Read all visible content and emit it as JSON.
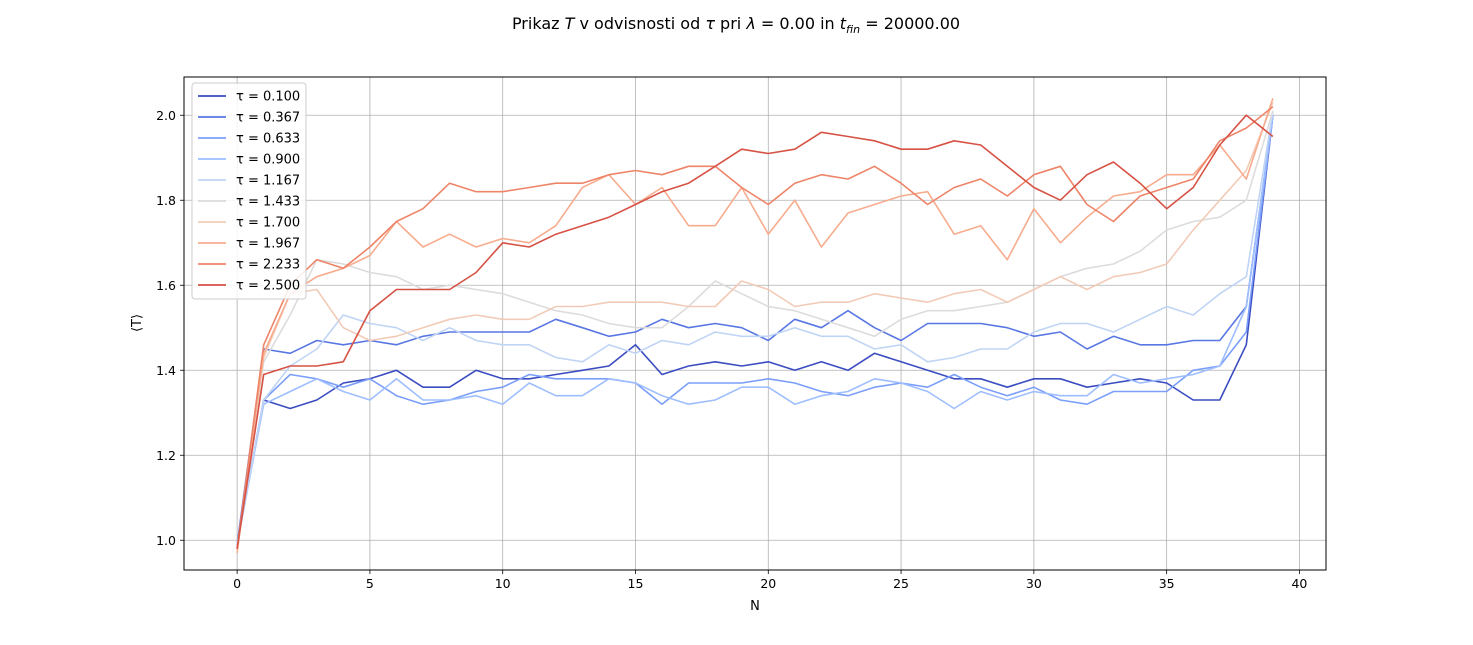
{
  "title_prefix": "Prikaz ",
  "title_T": "T",
  "title_mid1": " v odvisnosti od ",
  "title_tau": "τ",
  "title_mid2": " pri ",
  "title_lambda": "λ",
  "title_mid3": " = 0.00 in ",
  "title_t": "t",
  "title_sub": "fin",
  "title_end": " = 20000.00",
  "chart_data": {
    "type": "line",
    "xlabel": "N",
    "ylabel": "⟨T⟩",
    "xlim": [
      -2,
      41
    ],
    "ylim": [
      0.93,
      2.09
    ],
    "xticks": [
      0,
      5,
      10,
      15,
      20,
      25,
      30,
      35,
      40
    ],
    "yticks": [
      1.0,
      1.2,
      1.4,
      1.6,
      1.8,
      2.0
    ],
    "grid": true,
    "legend_position": "upper-left",
    "x": [
      0,
      1,
      2,
      3,
      4,
      5,
      6,
      7,
      8,
      9,
      10,
      11,
      12,
      13,
      14,
      15,
      16,
      17,
      18,
      19,
      20,
      21,
      22,
      23,
      24,
      25,
      26,
      27,
      28,
      29,
      30,
      31,
      32,
      33,
      34,
      35,
      36,
      37,
      38,
      39
    ],
    "series": [
      {
        "name": "τ = 0.100",
        "color": "#3b4cc0",
        "values": [
          0.99,
          1.33,
          1.31,
          1.33,
          1.37,
          1.38,
          1.4,
          1.36,
          1.36,
          1.4,
          1.38,
          1.38,
          1.39,
          1.4,
          1.41,
          1.46,
          1.39,
          1.41,
          1.42,
          1.41,
          1.42,
          1.4,
          1.42,
          1.4,
          1.44,
          1.42,
          1.4,
          1.38,
          1.38,
          1.36,
          1.38,
          1.38,
          1.36,
          1.37,
          1.38,
          1.37,
          1.33,
          1.33,
          1.46,
          2.0
        ]
      },
      {
        "name": "τ = 0.367",
        "color": "#5977e3",
        "values": [
          0.99,
          1.45,
          1.44,
          1.47,
          1.46,
          1.47,
          1.46,
          1.48,
          1.49,
          1.49,
          1.49,
          1.49,
          1.52,
          1.5,
          1.48,
          1.49,
          1.52,
          1.5,
          1.51,
          1.5,
          1.47,
          1.52,
          1.5,
          1.54,
          1.5,
          1.47,
          1.51,
          1.51,
          1.51,
          1.5,
          1.48,
          1.49,
          1.45,
          1.48,
          1.46,
          1.46,
          1.47,
          1.47,
          1.55,
          2.0
        ]
      },
      {
        "name": "τ = 0.633",
        "color": "#7b9ff9",
        "values": [
          0.99,
          1.33,
          1.39,
          1.38,
          1.36,
          1.38,
          1.34,
          1.32,
          1.33,
          1.35,
          1.36,
          1.39,
          1.38,
          1.38,
          1.38,
          1.37,
          1.32,
          1.37,
          1.37,
          1.37,
          1.38,
          1.37,
          1.35,
          1.34,
          1.36,
          1.37,
          1.36,
          1.39,
          1.36,
          1.34,
          1.36,
          1.33,
          1.32,
          1.35,
          1.35,
          1.35,
          1.4,
          1.41,
          1.49,
          2.0
        ]
      },
      {
        "name": "τ = 0.900",
        "color": "#9ebeff",
        "values": [
          0.99,
          1.32,
          1.35,
          1.38,
          1.35,
          1.33,
          1.38,
          1.33,
          1.33,
          1.34,
          1.32,
          1.37,
          1.34,
          1.34,
          1.38,
          1.37,
          1.34,
          1.32,
          1.33,
          1.36,
          1.36,
          1.32,
          1.34,
          1.35,
          1.38,
          1.37,
          1.35,
          1.31,
          1.35,
          1.33,
          1.35,
          1.34,
          1.34,
          1.39,
          1.37,
          1.38,
          1.39,
          1.41,
          1.55,
          2.0
        ]
      },
      {
        "name": "τ = 1.167",
        "color": "#c0d4f5",
        "values": [
          0.99,
          1.33,
          1.41,
          1.45,
          1.53,
          1.51,
          1.5,
          1.47,
          1.5,
          1.47,
          1.46,
          1.46,
          1.43,
          1.42,
          1.46,
          1.44,
          1.47,
          1.46,
          1.49,
          1.48,
          1.48,
          1.5,
          1.48,
          1.48,
          1.45,
          1.46,
          1.42,
          1.43,
          1.45,
          1.45,
          1.49,
          1.51,
          1.51,
          1.49,
          1.52,
          1.55,
          1.53,
          1.58,
          1.62,
          2.01
        ]
      },
      {
        "name": "τ = 1.433",
        "color": "#dddcdc",
        "values": [
          0.98,
          1.42,
          1.53,
          1.66,
          1.65,
          1.63,
          1.62,
          1.59,
          1.6,
          1.59,
          1.58,
          1.56,
          1.54,
          1.53,
          1.51,
          1.5,
          1.5,
          1.55,
          1.61,
          1.58,
          1.55,
          1.54,
          1.52,
          1.5,
          1.48,
          1.52,
          1.54,
          1.54,
          1.55,
          1.56,
          1.59,
          1.62,
          1.64,
          1.65,
          1.68,
          1.73,
          1.75,
          1.76,
          1.8,
          2.01
        ]
      },
      {
        "name": "τ = 1.700",
        "color": "#f2cbb7",
        "values": [
          0.98,
          1.43,
          1.58,
          1.59,
          1.5,
          1.47,
          1.48,
          1.5,
          1.52,
          1.53,
          1.52,
          1.52,
          1.55,
          1.55,
          1.56,
          1.56,
          1.56,
          1.55,
          1.55,
          1.61,
          1.59,
          1.55,
          1.56,
          1.56,
          1.58,
          1.57,
          1.56,
          1.58,
          1.59,
          1.56,
          1.59,
          1.62,
          1.59,
          1.62,
          1.63,
          1.65,
          1.73,
          1.8,
          1.87,
          2.03
        ]
      },
      {
        "name": "τ = 1.967",
        "color": "#f7ac8e",
        "values": [
          0.97,
          1.44,
          1.58,
          1.62,
          1.64,
          1.67,
          1.75,
          1.69,
          1.72,
          1.69,
          1.71,
          1.7,
          1.74,
          1.83,
          1.86,
          1.79,
          1.83,
          1.74,
          1.74,
          1.83,
          1.72,
          1.8,
          1.69,
          1.77,
          1.79,
          1.81,
          1.82,
          1.72,
          1.74,
          1.66,
          1.78,
          1.7,
          1.76,
          1.81,
          1.82,
          1.86,
          1.86,
          1.93,
          1.85,
          2.04
        ]
      },
      {
        "name": "τ = 2.233",
        "color": "#ee8468",
        "values": [
          0.98,
          1.46,
          1.6,
          1.66,
          1.64,
          1.69,
          1.75,
          1.78,
          1.84,
          1.82,
          1.82,
          1.83,
          1.84,
          1.84,
          1.86,
          1.87,
          1.86,
          1.88,
          1.88,
          1.83,
          1.79,
          1.84,
          1.86,
          1.85,
          1.88,
          1.84,
          1.79,
          1.83,
          1.85,
          1.81,
          1.86,
          1.88,
          1.79,
          1.75,
          1.81,
          1.83,
          1.85,
          1.94,
          1.97,
          2.02
        ]
      },
      {
        "name": "τ = 2.500",
        "color": "#d65244",
        "values": [
          0.98,
          1.39,
          1.41,
          1.41,
          1.42,
          1.54,
          1.59,
          1.59,
          1.59,
          1.63,
          1.7,
          1.69,
          1.72,
          1.74,
          1.76,
          1.79,
          1.82,
          1.84,
          1.88,
          1.92,
          1.91,
          1.92,
          1.96,
          1.95,
          1.94,
          1.92,
          1.92,
          1.94,
          1.93,
          1.88,
          1.83,
          1.8,
          1.86,
          1.89,
          1.84,
          1.78,
          1.83,
          1.93,
          2.0,
          1.95
        ]
      }
    ]
  }
}
